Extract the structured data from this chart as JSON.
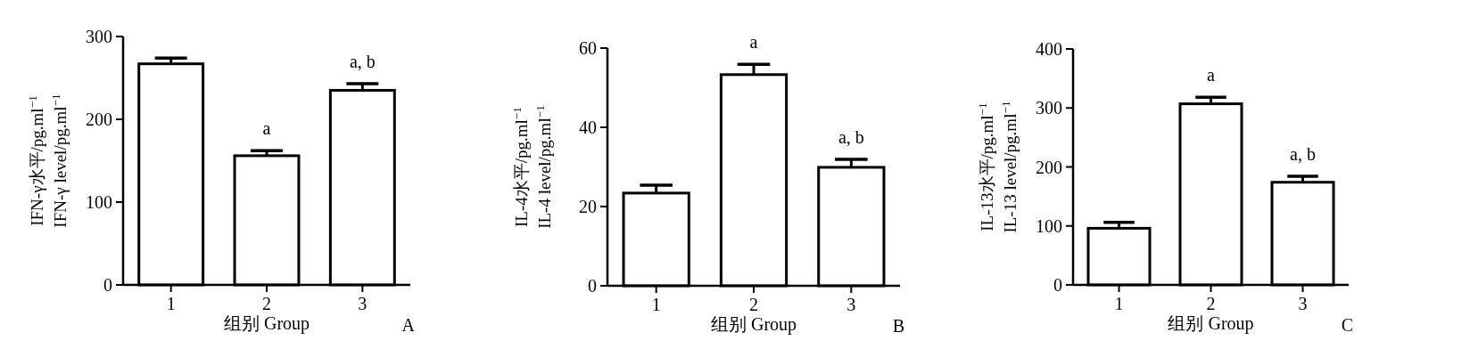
{
  "chart_data": [
    {
      "type": "bar",
      "categories": [
        "1",
        "2",
        "3"
      ],
      "values": [
        267,
        156,
        235
      ],
      "errors": [
        7,
        6,
        8
      ],
      "color": "#ffffff",
      "xlabel": "组别 Group",
      "ylabel": "IFN-γ水平/pg.ml$^{−1}$\nIFN-γ level/pg.ml$^{−1}$",
      "ylim": [
        0,
        300
      ],
      "yticks": [
        0,
        100,
        200,
        300
      ],
      "annotations": [
        {
          "text": "a",
          "x": "2",
          "y": 156
        },
        {
          "text": "a, b",
          "x": "3",
          "y": 235
        },
        "A"
      ]
    },
    {
      "type": "bar",
      "categories": [
        "1",
        "2",
        "3"
      ],
      "values": [
        23.4,
        53.3,
        29.9
      ],
      "errors": [
        2,
        2.6,
        2
      ],
      "color": "#ffffff",
      "xlabel": "组别 Group",
      "ylabel": "IL-4水平/pg.ml$^{−1}$\nIL-4  level/pg.ml$^{−1}$",
      "ylim": [
        0,
        60
      ],
      "yticks": [
        0,
        20,
        40,
        60
      ],
      "annotations": [
        {
          "text": "a",
          "x": "2",
          "y": 53.3
        },
        {
          "text": "a, b",
          "x": "3",
          "y": 29.9
        },
        "B"
      ]
    },
    {
      "type": "bar",
      "categories": [
        "1",
        "2",
        "3"
      ],
      "values": [
        96,
        307,
        174
      ],
      "errors": [
        10,
        11,
        10
      ],
      "color": "#ffffff",
      "xlabel": "组别 Group",
      "ylabel": "IL-13水平/pg.ml$^{−1}$\nIL-13  level/pg.ml$^{−1}$",
      "ylim": [
        0,
        400
      ],
      "yticks": [
        0,
        100,
        200,
        300,
        400
      ],
      "annotations": [
        {
          "text": "a",
          "x": "2",
          "y": 307
        },
        {
          "text": "a, b",
          "x": "3",
          "y": 174
        },
        "C"
      ]
    }
  ]
}
